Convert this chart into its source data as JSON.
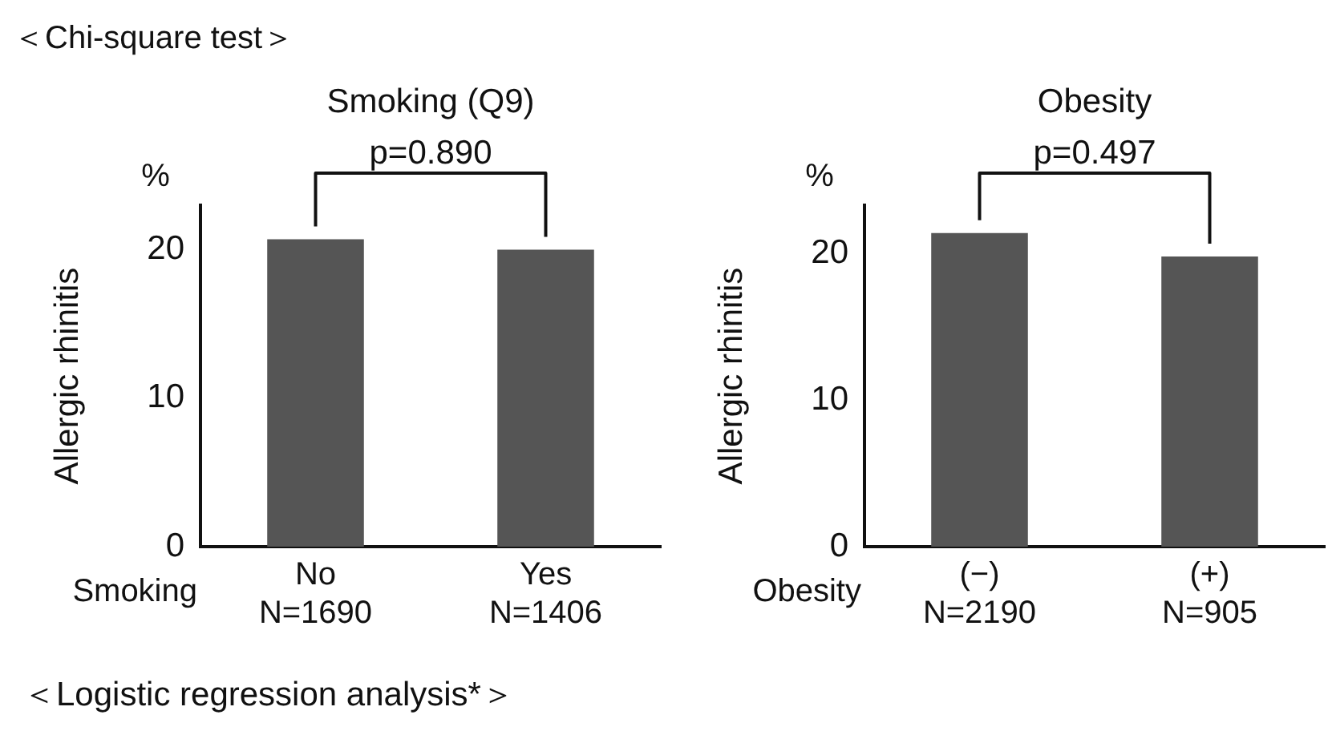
{
  "chart_data": [
    {
      "type": "bar",
      "title": "Smoking (Q9)",
      "xlabel": "Smoking",
      "ylabel": "Allergic rhinitis",
      "categories": [
        "No\nN=1690",
        "Yes\nN=1406"
      ],
      "values": [
        20.7,
        20.0
      ],
      "color": "#555555",
      "ylim": [
        0,
        23
      ],
      "yticks": [
        0,
        10,
        20
      ],
      "grid": false,
      "legend": false,
      "annotations": [
        "p=0.890",
        "%",
        "＜Chi-square test＞",
        "＜Logistic regression analysis*＞"
      ]
    },
    {
      "type": "bar",
      "title": "Obesity",
      "xlabel": "Obesity",
      "ylabel": "Allergic rhinitis",
      "categories": [
        "(−)\nN=2190",
        "(+)\nN=905"
      ],
      "values": [
        21.4,
        19.8
      ],
      "color": "#555555",
      "ylim": [
        0,
        23.3
      ],
      "yticks": [
        0,
        10,
        20
      ],
      "grid": false,
      "legend": false,
      "annotations": [
        "p=0.497",
        "%"
      ]
    }
  ]
}
